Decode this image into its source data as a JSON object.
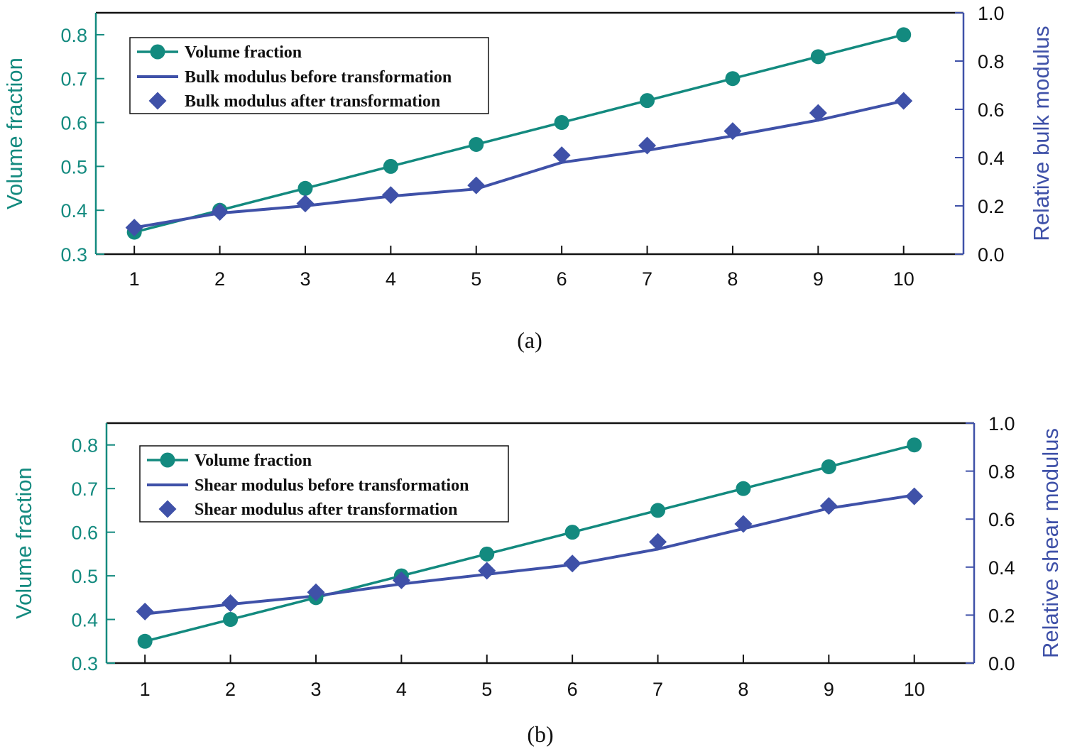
{
  "colors": {
    "volume": "#138a7f",
    "modulus": "#3f51a8",
    "axis": "#111111"
  },
  "chart_data": [
    {
      "type": "line",
      "caption": "(a)",
      "x": [
        1,
        2,
        3,
        4,
        5,
        6,
        7,
        8,
        9,
        10
      ],
      "x_tick_labels": [
        "1",
        "2",
        "3",
        "4",
        "5",
        "6",
        "7",
        "8",
        "9",
        "10"
      ],
      "xlim": [
        0.55,
        10.7
      ],
      "ylabel_left": "Volume fraction",
      "ylim_left": [
        0.3,
        0.85
      ],
      "y_ticks_left": [
        "0.3",
        "0.4",
        "0.5",
        "0.6",
        "0.7",
        "0.8"
      ],
      "ylabel_right": "Relative bulk modulus",
      "ylim_right": [
        0.0,
        1.0
      ],
      "y_ticks_right": [
        "0.0",
        "0.2",
        "0.4",
        "0.6",
        "0.8",
        "1.0"
      ],
      "legend_position": "top-left",
      "series": [
        {
          "name": "Volume fraction",
          "axis": "left",
          "style": "line-circle",
          "values": [
            0.35,
            0.4,
            0.45,
            0.5,
            0.55,
            0.6,
            0.65,
            0.7,
            0.75,
            0.8
          ]
        },
        {
          "name": "Bulk modulus before transformation",
          "axis": "right",
          "style": "line",
          "values": [
            0.11,
            0.17,
            0.2,
            0.24,
            0.27,
            0.38,
            0.43,
            0.49,
            0.555,
            0.635
          ]
        },
        {
          "name": "Bulk modulus after transformation",
          "axis": "right",
          "style": "diamond",
          "values": [
            0.11,
            0.175,
            0.21,
            0.245,
            0.285,
            0.41,
            0.45,
            0.51,
            0.585,
            0.635
          ]
        }
      ]
    },
    {
      "type": "line",
      "caption": "(b)",
      "x": [
        1,
        2,
        3,
        4,
        5,
        6,
        7,
        8,
        9,
        10
      ],
      "x_tick_labels": [
        "1",
        "2",
        "3",
        "4",
        "5",
        "6",
        "7",
        "8",
        "9",
        "10"
      ],
      "xlim": [
        0.55,
        10.7
      ],
      "ylabel_left": "Volume fraction",
      "ylim_left": [
        0.3,
        0.85
      ],
      "y_ticks_left": [
        "0.3",
        "0.4",
        "0.5",
        "0.6",
        "0.7",
        "0.8"
      ],
      "ylabel_right": "Relative shear modulus",
      "ylim_right": [
        0.0,
        1.0
      ],
      "y_ticks_right": [
        "0.0",
        "0.2",
        "0.4",
        "0.6",
        "0.8",
        "1.0"
      ],
      "legend_position": "top-left",
      "series": [
        {
          "name": "Volume fraction",
          "axis": "left",
          "style": "line-circle",
          "values": [
            0.35,
            0.4,
            0.45,
            0.5,
            0.55,
            0.6,
            0.65,
            0.7,
            0.75,
            0.8
          ]
        },
        {
          "name": "Shear modulus before transformation",
          "axis": "right",
          "style": "line",
          "values": [
            0.205,
            0.245,
            0.28,
            0.33,
            0.37,
            0.41,
            0.475,
            0.56,
            0.645,
            0.7
          ]
        },
        {
          "name": "Shear modulus after transformation",
          "axis": "right",
          "style": "diamond",
          "values": [
            0.215,
            0.25,
            0.295,
            0.345,
            0.385,
            0.415,
            0.505,
            0.58,
            0.655,
            0.695
          ]
        }
      ]
    }
  ]
}
